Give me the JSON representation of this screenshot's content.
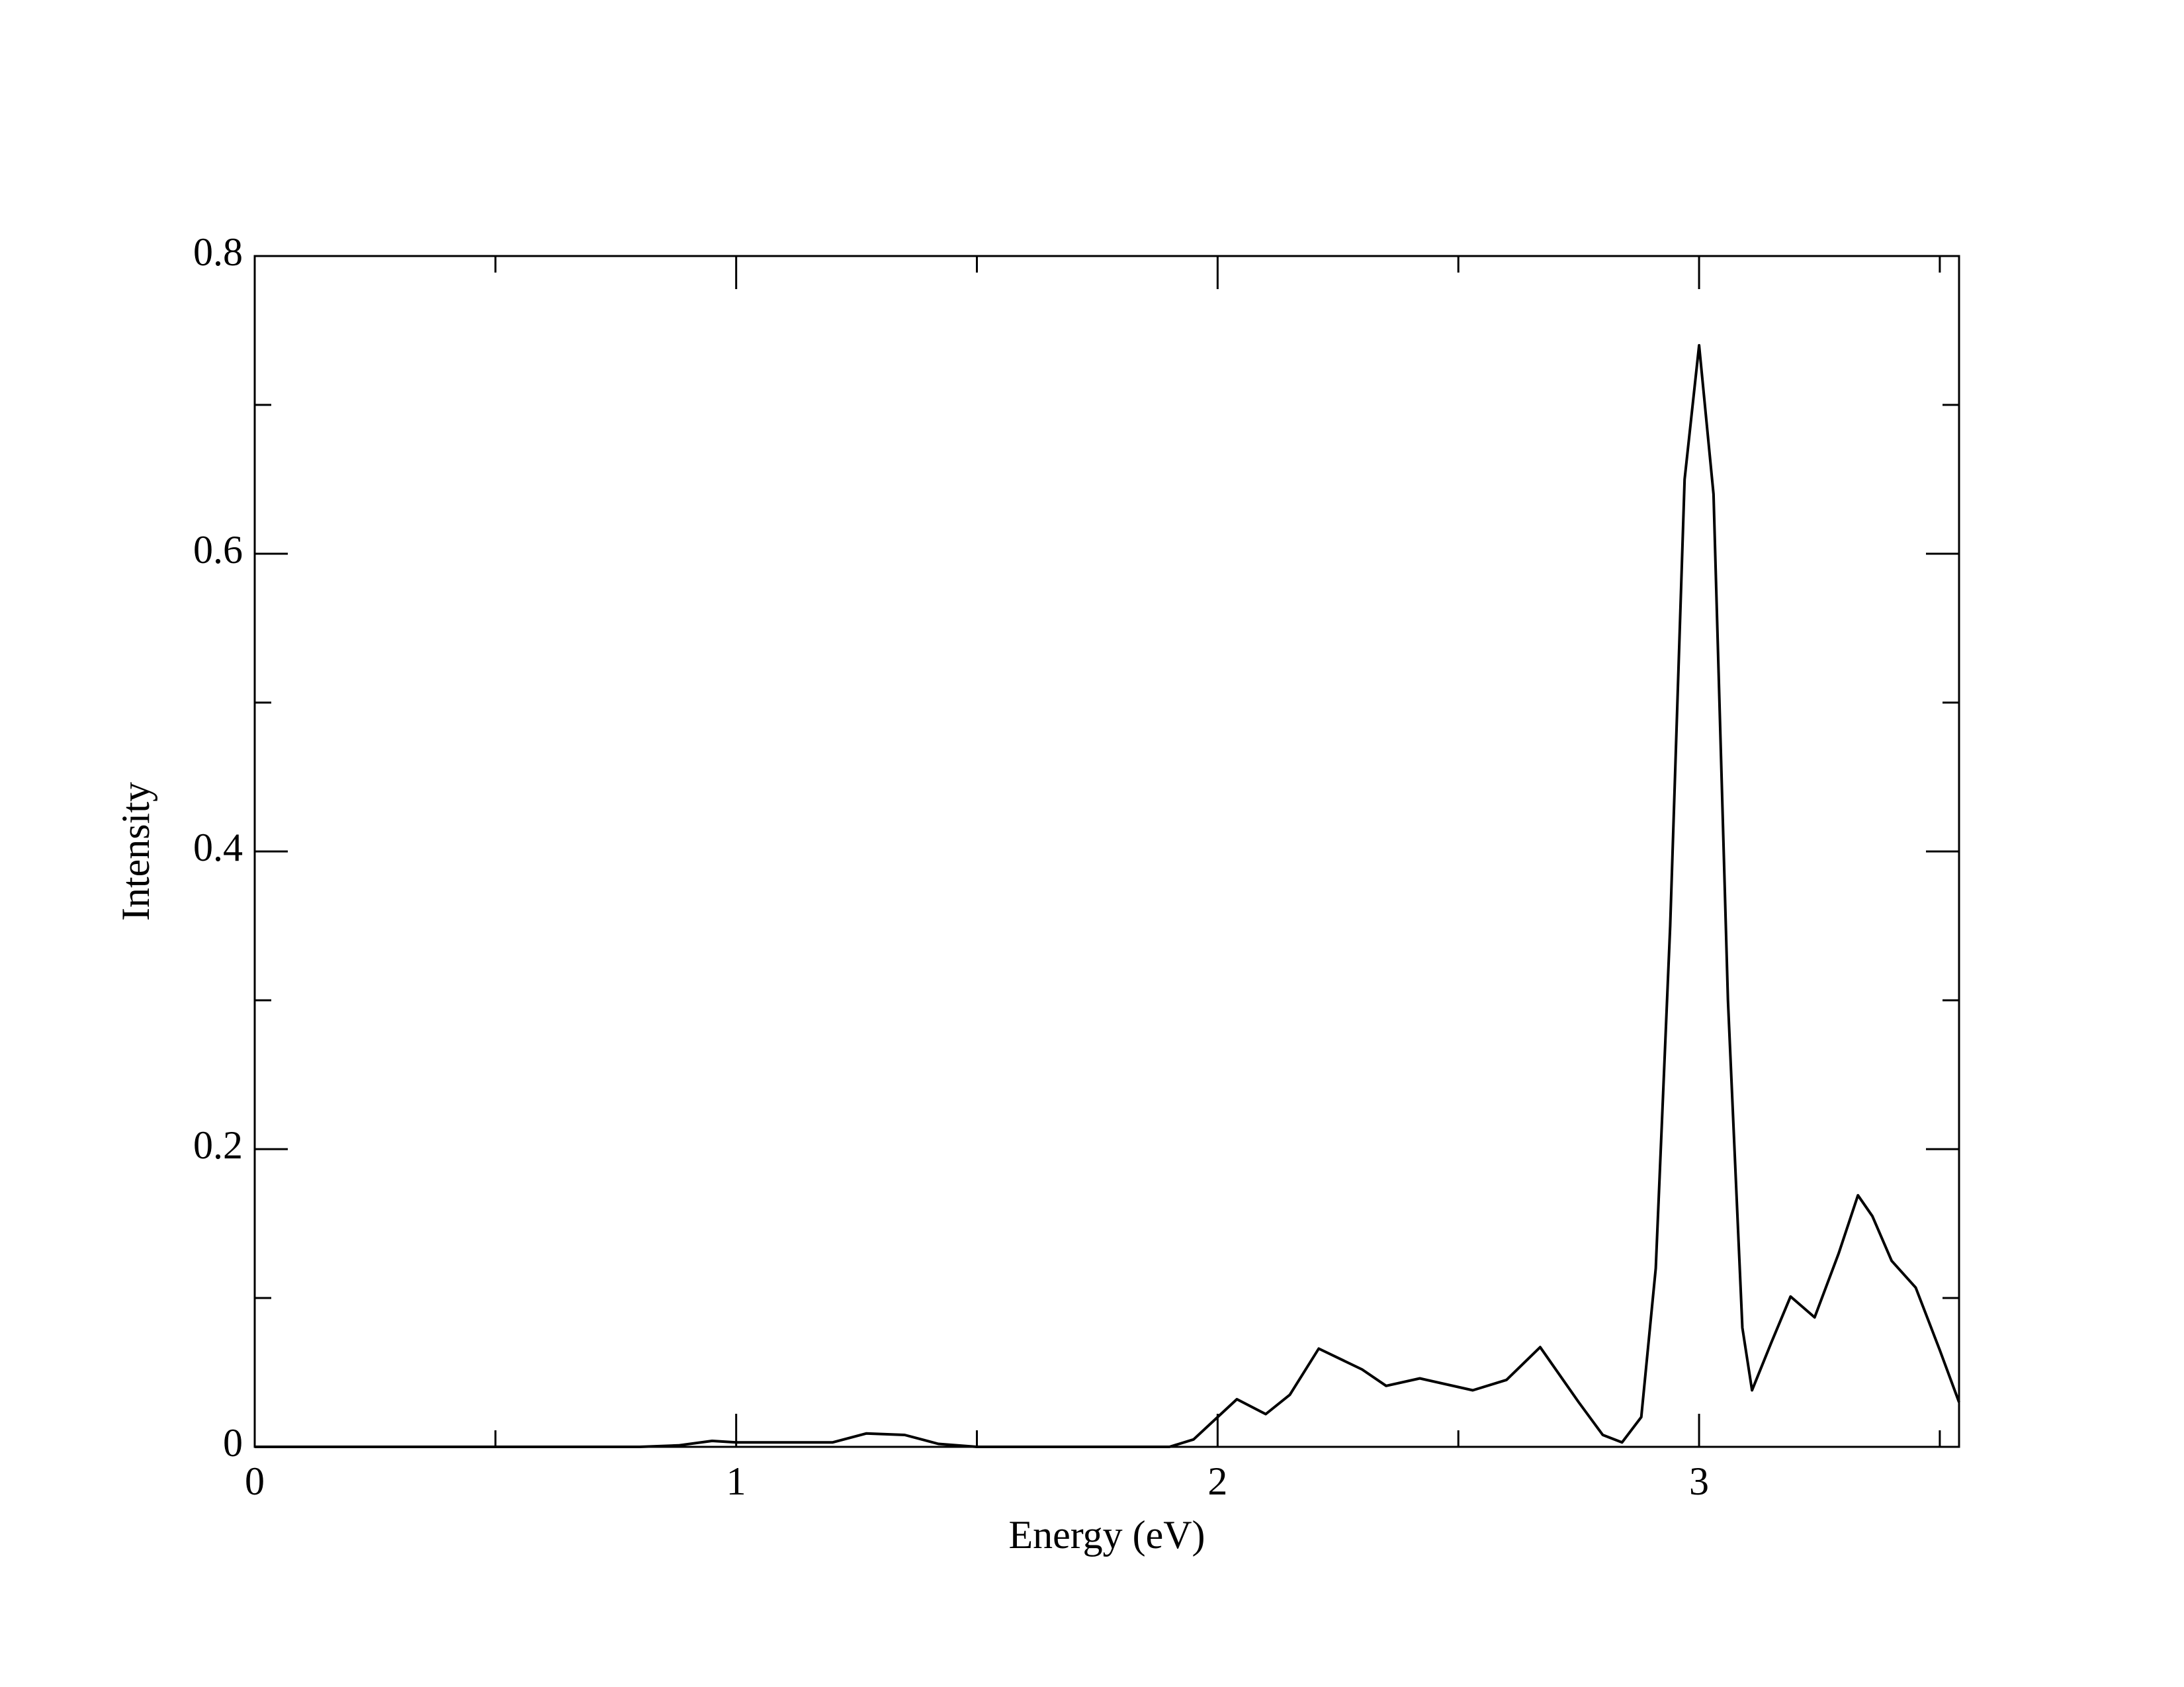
{
  "chart_data": {
    "type": "line",
    "x_label": "Energy (eV)",
    "y_label": "Intensity",
    "xlim": [
      0,
      3.54
    ],
    "ylim": [
      0,
      0.8
    ],
    "xticks": [
      0,
      1,
      2,
      3
    ],
    "yticks": [
      0,
      0.2,
      0.4,
      0.6,
      0.8
    ],
    "x": [
      0,
      0.8,
      0.88,
      0.95,
      1.0,
      1.2,
      1.27,
      1.35,
      1.42,
      1.5,
      1.9,
      1.95,
      2.0,
      2.04,
      2.1,
      2.15,
      2.21,
      2.3,
      2.35,
      2.42,
      2.53,
      2.6,
      2.67,
      2.75,
      2.8,
      2.84,
      2.88,
      2.91,
      2.94,
      2.97,
      3.0,
      3.03,
      3.06,
      3.09,
      3.11,
      3.15,
      3.19,
      3.24,
      3.29,
      3.33,
      3.36,
      3.4,
      3.45,
      3.5,
      3.54
    ],
    "series": [
      {
        "color": "#000000",
        "values": [
          0,
          0,
          0.001,
          0.004,
          0.003,
          0.003,
          0.009,
          0.008,
          0.002,
          0,
          0,
          0.005,
          0.02,
          0.032,
          0.022,
          0.035,
          0.066,
          0.052,
          0.041,
          0.046,
          0.038,
          0.045,
          0.067,
          0.03,
          0.008,
          0.003,
          0.02,
          0.12,
          0.35,
          0.65,
          0.74,
          0.64,
          0.3,
          0.08,
          0.038,
          0.07,
          0.101,
          0.087,
          0.13,
          0.169,
          0.155,
          0.125,
          0.107,
          0.065,
          0.03
        ]
      }
    ]
  }
}
